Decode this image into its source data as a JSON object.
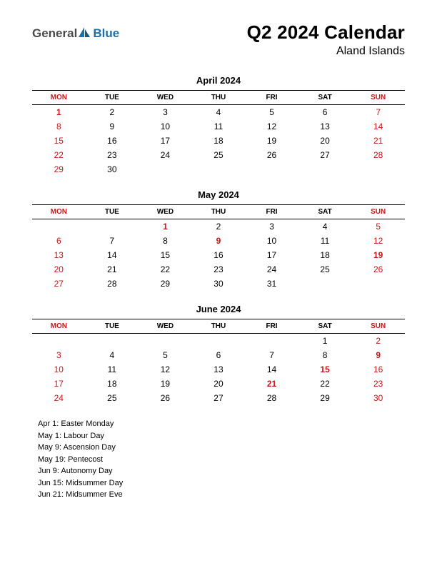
{
  "logo": {
    "general": "General",
    "blue": "Blue"
  },
  "title": "Q2 2024 Calendar",
  "subtitle": "Aland Islands",
  "colors": {
    "red": "#c81818",
    "ruleTop": "#000000",
    "ruleBottom": "#000000",
    "background": "#ffffff",
    "logoBlue": "#1d6fa5",
    "logoGrey": "#4a4a4a"
  },
  "dayHeaders": [
    "MON",
    "TUE",
    "WED",
    "THU",
    "FRI",
    "SAT",
    "SUN"
  ],
  "redHeaderCols": [
    0,
    6
  ],
  "months": [
    {
      "title": "April 2024",
      "weeks": [
        [
          {
            "d": 1,
            "r": true,
            "b": true
          },
          {
            "d": 2
          },
          {
            "d": 3
          },
          {
            "d": 4
          },
          {
            "d": 5
          },
          {
            "d": 6
          },
          {
            "d": 7,
            "r": true
          }
        ],
        [
          {
            "d": 8,
            "r": true
          },
          {
            "d": 9
          },
          {
            "d": 10
          },
          {
            "d": 11
          },
          {
            "d": 12
          },
          {
            "d": 13
          },
          {
            "d": 14,
            "r": true
          }
        ],
        [
          {
            "d": 15,
            "r": true
          },
          {
            "d": 16
          },
          {
            "d": 17
          },
          {
            "d": 18
          },
          {
            "d": 19
          },
          {
            "d": 20
          },
          {
            "d": 21,
            "r": true
          }
        ],
        [
          {
            "d": 22,
            "r": true
          },
          {
            "d": 23
          },
          {
            "d": 24
          },
          {
            "d": 25
          },
          {
            "d": 26
          },
          {
            "d": 27
          },
          {
            "d": 28,
            "r": true
          }
        ],
        [
          {
            "d": 29,
            "r": true
          },
          {
            "d": 30
          },
          null,
          null,
          null,
          null,
          null
        ]
      ]
    },
    {
      "title": "May 2024",
      "weeks": [
        [
          null,
          null,
          {
            "d": 1,
            "r": true,
            "b": true
          },
          {
            "d": 2
          },
          {
            "d": 3
          },
          {
            "d": 4
          },
          {
            "d": 5,
            "r": true
          }
        ],
        [
          {
            "d": 6,
            "r": true
          },
          {
            "d": 7
          },
          {
            "d": 8
          },
          {
            "d": 9,
            "r": true,
            "b": true
          },
          {
            "d": 10
          },
          {
            "d": 11
          },
          {
            "d": 12,
            "r": true
          }
        ],
        [
          {
            "d": 13,
            "r": true
          },
          {
            "d": 14
          },
          {
            "d": 15
          },
          {
            "d": 16
          },
          {
            "d": 17
          },
          {
            "d": 18
          },
          {
            "d": 19,
            "r": true,
            "b": true
          }
        ],
        [
          {
            "d": 20,
            "r": true
          },
          {
            "d": 21
          },
          {
            "d": 22
          },
          {
            "d": 23
          },
          {
            "d": 24
          },
          {
            "d": 25
          },
          {
            "d": 26,
            "r": true
          }
        ],
        [
          {
            "d": 27,
            "r": true
          },
          {
            "d": 28
          },
          {
            "d": 29
          },
          {
            "d": 30
          },
          {
            "d": 31
          },
          null,
          null
        ]
      ]
    },
    {
      "title": "June 2024",
      "weeks": [
        [
          null,
          null,
          null,
          null,
          null,
          {
            "d": 1
          },
          {
            "d": 2,
            "r": true
          }
        ],
        [
          {
            "d": 3,
            "r": true
          },
          {
            "d": 4
          },
          {
            "d": 5
          },
          {
            "d": 6
          },
          {
            "d": 7
          },
          {
            "d": 8
          },
          {
            "d": 9,
            "r": true,
            "b": true
          }
        ],
        [
          {
            "d": 10,
            "r": true
          },
          {
            "d": 11
          },
          {
            "d": 12
          },
          {
            "d": 13
          },
          {
            "d": 14
          },
          {
            "d": 15,
            "r": true,
            "b": true
          },
          {
            "d": 16,
            "r": true
          }
        ],
        [
          {
            "d": 17,
            "r": true
          },
          {
            "d": 18
          },
          {
            "d": 19
          },
          {
            "d": 20
          },
          {
            "d": 21,
            "r": true,
            "b": true
          },
          {
            "d": 22
          },
          {
            "d": 23,
            "r": true
          }
        ],
        [
          {
            "d": 24,
            "r": true
          },
          {
            "d": 25
          },
          {
            "d": 26
          },
          {
            "d": 27
          },
          {
            "d": 28
          },
          {
            "d": 29
          },
          {
            "d": 30,
            "r": true
          }
        ]
      ]
    }
  ],
  "holidays": [
    "Apr 1: Easter Monday",
    "May 1: Labour Day",
    "May 9: Ascension Day",
    "May 19: Pentecost",
    "Jun 9: Autonomy Day",
    "Jun 15: Midsummer Day",
    "Jun 21: Midsummer Eve"
  ]
}
